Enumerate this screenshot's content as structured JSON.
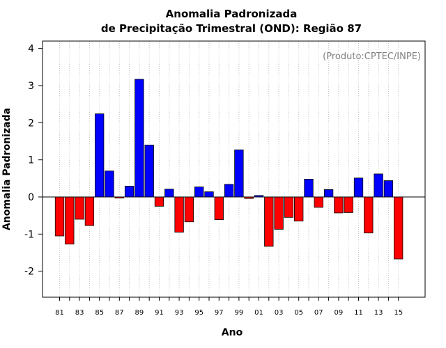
{
  "chart_data": {
    "type": "bar",
    "title_line1": "Anomalia Padronizada",
    "title_line2": "de Precipitação Trimestral (OND): Região 87",
    "xlabel": "Ano",
    "ylabel": "Anomalia Padronizada",
    "credit": "(Produto:CPTEC/INPE)",
    "ylim": [
      -2.7,
      4.2
    ],
    "yticks": [
      -2,
      -1,
      0,
      1,
      2,
      3,
      4
    ],
    "grid": "vertical-dotted",
    "positive_color": "#0000ff",
    "negative_color": "#ff0000",
    "categories": [
      "81",
      "82",
      "83",
      "84",
      "85",
      "86",
      "87",
      "88",
      "89",
      "90",
      "91",
      "92",
      "93",
      "94",
      "95",
      "96",
      "97",
      "98",
      "99",
      "00",
      "01",
      "02",
      "03",
      "04",
      "05",
      "06",
      "07",
      "08",
      "09",
      "10",
      "11",
      "12",
      "13",
      "14",
      "15"
    ],
    "tick_labels": [
      "81",
      "83",
      "85",
      "87",
      "89",
      "91",
      "93",
      "95",
      "97",
      "99",
      "01",
      "03",
      "05",
      "07",
      "09",
      "11",
      "13",
      "15"
    ],
    "values": [
      -1.05,
      -1.27,
      -0.6,
      -0.77,
      2.24,
      0.7,
      -0.03,
      0.29,
      3.17,
      1.4,
      -0.25,
      0.21,
      -0.95,
      -0.67,
      0.27,
      0.14,
      -0.61,
      0.34,
      1.27,
      -0.04,
      0.04,
      -1.33,
      -0.87,
      -0.55,
      -0.65,
      0.48,
      -0.28,
      0.2,
      -0.43,
      -0.42,
      0.51,
      -0.97,
      0.62,
      0.44,
      -1.67
    ]
  }
}
